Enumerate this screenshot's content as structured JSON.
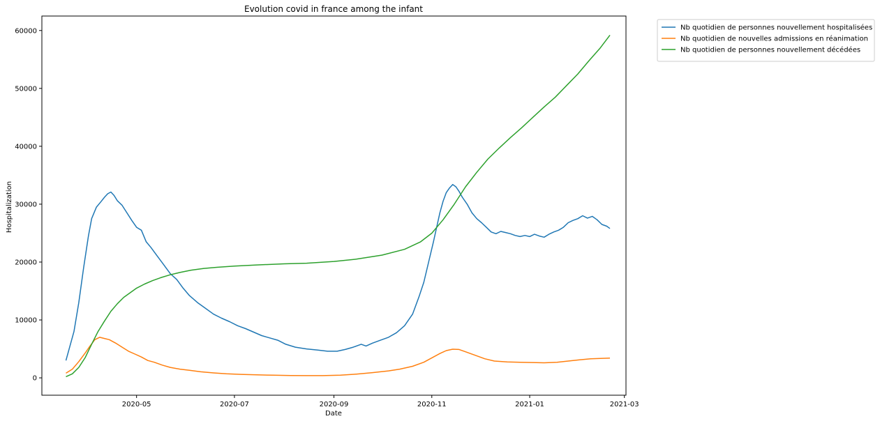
{
  "chart_data": {
    "type": "line",
    "title": "Evolution covid in france among the infant",
    "xlabel": "Date",
    "ylabel": "Hospitalization",
    "xlim": [
      "2020-03-03",
      "2021-03-02"
    ],
    "ylim": [
      -3000,
      62500
    ],
    "x_ticks": [
      "2020-05",
      "2020-07",
      "2020-09",
      "2020-11",
      "2021-01",
      "2021-03"
    ],
    "y_ticks": [
      0,
      10000,
      20000,
      30000,
      40000,
      50000,
      60000
    ],
    "grid": false,
    "legend_position": "outside-top-right",
    "series": [
      {
        "name": "Nb quotidien de personnes nouvellement hospitalisées",
        "color": "#1f77b4",
        "points": [
          [
            "2020-03-18",
            3000
          ],
          [
            "2020-03-20",
            5000
          ],
          [
            "2020-03-23",
            8000
          ],
          [
            "2020-03-26",
            13000
          ],
          [
            "2020-03-29",
            19000
          ],
          [
            "2020-04-01",
            24500
          ],
          [
            "2020-04-03",
            27500
          ],
          [
            "2020-04-06",
            29500
          ],
          [
            "2020-04-09",
            30500
          ],
          [
            "2020-04-11",
            31200
          ],
          [
            "2020-04-13",
            31800
          ],
          [
            "2020-04-15",
            32100
          ],
          [
            "2020-04-17",
            31500
          ],
          [
            "2020-04-19",
            30600
          ],
          [
            "2020-04-22",
            29800
          ],
          [
            "2020-04-25",
            28500
          ],
          [
            "2020-04-28",
            27200
          ],
          [
            "2020-05-01",
            26000
          ],
          [
            "2020-05-04",
            25500
          ],
          [
            "2020-05-07",
            23500
          ],
          [
            "2020-05-10",
            22500
          ],
          [
            "2020-05-14",
            21000
          ],
          [
            "2020-05-18",
            19500
          ],
          [
            "2020-05-22",
            18000
          ],
          [
            "2020-05-26",
            17000
          ],
          [
            "2020-05-30",
            15500
          ],
          [
            "2020-06-03",
            14200
          ],
          [
            "2020-06-08",
            13000
          ],
          [
            "2020-06-13",
            12000
          ],
          [
            "2020-06-18",
            11000
          ],
          [
            "2020-06-23",
            10300
          ],
          [
            "2020-06-28",
            9700
          ],
          [
            "2020-07-03",
            9000
          ],
          [
            "2020-07-08",
            8500
          ],
          [
            "2020-07-13",
            7900
          ],
          [
            "2020-07-18",
            7300
          ],
          [
            "2020-07-23",
            6900
          ],
          [
            "2020-07-28",
            6500
          ],
          [
            "2020-08-02",
            5800
          ],
          [
            "2020-08-08",
            5300
          ],
          [
            "2020-08-15",
            5000
          ],
          [
            "2020-08-22",
            4800
          ],
          [
            "2020-08-28",
            4600
          ],
          [
            "2020-09-03",
            4600
          ],
          [
            "2020-09-08",
            4900
          ],
          [
            "2020-09-13",
            5300
          ],
          [
            "2020-09-18",
            5800
          ],
          [
            "2020-09-21",
            5500
          ],
          [
            "2020-09-25",
            6000
          ],
          [
            "2020-09-30",
            6500
          ],
          [
            "2020-10-05",
            7000
          ],
          [
            "2020-10-10",
            7800
          ],
          [
            "2020-10-15",
            9000
          ],
          [
            "2020-10-20",
            11000
          ],
          [
            "2020-10-24",
            14000
          ],
          [
            "2020-10-27",
            16500
          ],
          [
            "2020-10-30",
            20000
          ],
          [
            "2020-11-02",
            23500
          ],
          [
            "2020-11-04",
            26000
          ],
          [
            "2020-11-06",
            28500
          ],
          [
            "2020-11-08",
            30500
          ],
          [
            "2020-11-10",
            32000
          ],
          [
            "2020-11-12",
            32800
          ],
          [
            "2020-11-14",
            33400
          ],
          [
            "2020-11-16",
            33000
          ],
          [
            "2020-11-18",
            32200
          ],
          [
            "2020-11-20",
            31200
          ],
          [
            "2020-11-23",
            30000
          ],
          [
            "2020-11-26",
            28500
          ],
          [
            "2020-11-29",
            27500
          ],
          [
            "2020-12-02",
            26800
          ],
          [
            "2020-12-05",
            26000
          ],
          [
            "2020-12-08",
            25200
          ],
          [
            "2020-12-11",
            24900
          ],
          [
            "2020-12-14",
            25300
          ],
          [
            "2020-12-17",
            25100
          ],
          [
            "2020-12-20",
            24900
          ],
          [
            "2020-12-23",
            24600
          ],
          [
            "2020-12-26",
            24400
          ],
          [
            "2020-12-29",
            24600
          ],
          [
            "2021-01-01",
            24400
          ],
          [
            "2021-01-04",
            24800
          ],
          [
            "2021-01-07",
            24500
          ],
          [
            "2021-01-10",
            24300
          ],
          [
            "2021-01-13",
            24800
          ],
          [
            "2021-01-16",
            25200
          ],
          [
            "2021-01-19",
            25500
          ],
          [
            "2021-01-22",
            26000
          ],
          [
            "2021-01-25",
            26800
          ],
          [
            "2021-01-28",
            27200
          ],
          [
            "2021-01-31",
            27500
          ],
          [
            "2021-02-03",
            28000
          ],
          [
            "2021-02-06",
            27600
          ],
          [
            "2021-02-09",
            27900
          ],
          [
            "2021-02-12",
            27300
          ],
          [
            "2021-02-15",
            26500
          ],
          [
            "2021-02-18",
            26200
          ],
          [
            "2021-02-20",
            25800
          ]
        ]
      },
      {
        "name": "Nb quotidien de nouvelles admissions en réanimation",
        "color": "#ff7f0e",
        "points": [
          [
            "2020-03-18",
            800
          ],
          [
            "2020-03-22",
            1500
          ],
          [
            "2020-03-26",
            2800
          ],
          [
            "2020-03-30",
            4300
          ],
          [
            "2020-04-02",
            5500
          ],
          [
            "2020-04-05",
            6600
          ],
          [
            "2020-04-08",
            7000
          ],
          [
            "2020-04-11",
            6800
          ],
          [
            "2020-04-14",
            6600
          ],
          [
            "2020-04-18",
            6000
          ],
          [
            "2020-04-22",
            5300
          ],
          [
            "2020-04-26",
            4600
          ],
          [
            "2020-04-30",
            4100
          ],
          [
            "2020-05-04",
            3600
          ],
          [
            "2020-05-08",
            3000
          ],
          [
            "2020-05-12",
            2700
          ],
          [
            "2020-05-17",
            2200
          ],
          [
            "2020-05-22",
            1800
          ],
          [
            "2020-05-28",
            1500
          ],
          [
            "2020-06-03",
            1300
          ],
          [
            "2020-06-10",
            1050
          ],
          [
            "2020-06-18",
            850
          ],
          [
            "2020-06-26",
            700
          ],
          [
            "2020-07-05",
            600
          ],
          [
            "2020-07-15",
            520
          ],
          [
            "2020-07-25",
            450
          ],
          [
            "2020-08-05",
            400
          ],
          [
            "2020-08-15",
            380
          ],
          [
            "2020-08-25",
            380
          ],
          [
            "2020-09-05",
            450
          ],
          [
            "2020-09-15",
            650
          ],
          [
            "2020-09-25",
            900
          ],
          [
            "2020-10-05",
            1200
          ],
          [
            "2020-10-12",
            1500
          ],
          [
            "2020-10-20",
            2000
          ],
          [
            "2020-10-27",
            2700
          ],
          [
            "2020-11-02",
            3600
          ],
          [
            "2020-11-06",
            4200
          ],
          [
            "2020-11-10",
            4700
          ],
          [
            "2020-11-14",
            4950
          ],
          [
            "2020-11-18",
            4900
          ],
          [
            "2020-11-22",
            4500
          ],
          [
            "2020-11-28",
            3900
          ],
          [
            "2020-12-04",
            3300
          ],
          [
            "2020-12-10",
            2900
          ],
          [
            "2020-12-18",
            2750
          ],
          [
            "2020-12-26",
            2700
          ],
          [
            "2021-01-03",
            2650
          ],
          [
            "2021-01-10",
            2600
          ],
          [
            "2021-01-18",
            2700
          ],
          [
            "2021-01-25",
            2900
          ],
          [
            "2021-02-01",
            3100
          ],
          [
            "2021-02-08",
            3300
          ],
          [
            "2021-02-14",
            3350
          ],
          [
            "2021-02-20",
            3400
          ]
        ]
      },
      {
        "name": "Nb quotidien de personnes nouvellement décédées",
        "color": "#2ca02c",
        "points": [
          [
            "2020-03-18",
            200
          ],
          [
            "2020-03-22",
            700
          ],
          [
            "2020-03-26",
            1800
          ],
          [
            "2020-03-30",
            3500
          ],
          [
            "2020-04-03",
            5800
          ],
          [
            "2020-04-07",
            8000
          ],
          [
            "2020-04-11",
            9800
          ],
          [
            "2020-04-15",
            11500
          ],
          [
            "2020-04-19",
            12800
          ],
          [
            "2020-04-23",
            13900
          ],
          [
            "2020-04-27",
            14700
          ],
          [
            "2020-05-01",
            15500
          ],
          [
            "2020-05-06",
            16200
          ],
          [
            "2020-05-11",
            16800
          ],
          [
            "2020-05-16",
            17300
          ],
          [
            "2020-05-22",
            17800
          ],
          [
            "2020-05-28",
            18200
          ],
          [
            "2020-06-04",
            18600
          ],
          [
            "2020-06-12",
            18900
          ],
          [
            "2020-06-20",
            19100
          ],
          [
            "2020-07-01",
            19300
          ],
          [
            "2020-07-15",
            19500
          ],
          [
            "2020-08-01",
            19700
          ],
          [
            "2020-08-15",
            19800
          ],
          [
            "2020-09-01",
            20100
          ],
          [
            "2020-09-15",
            20500
          ],
          [
            "2020-10-01",
            21200
          ],
          [
            "2020-10-15",
            22200
          ],
          [
            "2020-10-25",
            23500
          ],
          [
            "2020-11-01",
            25000
          ],
          [
            "2020-11-08",
            27300
          ],
          [
            "2020-11-15",
            30000
          ],
          [
            "2020-11-22",
            33000
          ],
          [
            "2020-11-29",
            35500
          ],
          [
            "2020-12-06",
            37800
          ],
          [
            "2020-12-13",
            39700
          ],
          [
            "2020-12-20",
            41500
          ],
          [
            "2020-12-27",
            43200
          ],
          [
            "2021-01-03",
            45000
          ],
          [
            "2021-01-10",
            46800
          ],
          [
            "2021-01-17",
            48500
          ],
          [
            "2021-01-24",
            50500
          ],
          [
            "2021-01-31",
            52500
          ],
          [
            "2021-02-07",
            54800
          ],
          [
            "2021-02-14",
            57000
          ],
          [
            "2021-02-20",
            59200
          ]
        ]
      }
    ]
  }
}
